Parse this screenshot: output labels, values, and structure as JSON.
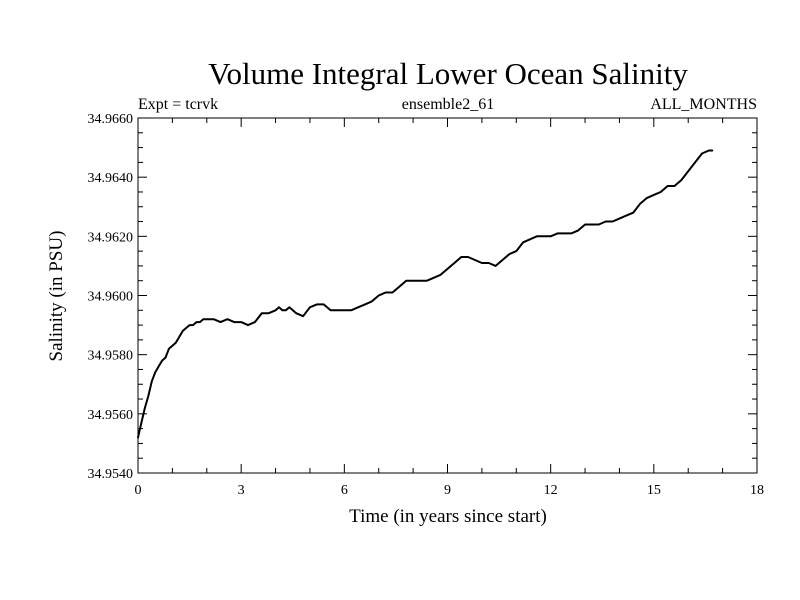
{
  "chart_data": {
    "type": "line",
    "title": "Volume Integral Lower Ocean Salinity",
    "subtitle_left": "Expt = tcrvk",
    "subtitle_center": "ensemble2_61",
    "subtitle_right": "ALL_MONTHS",
    "xlabel": "Time (in years since start)",
    "ylabel": "Salinity (in PSU)",
    "xlim": [
      0,
      18
    ],
    "ylim": [
      34.954,
      34.966
    ],
    "xticks": [
      "0",
      "3",
      "6",
      "9",
      "12",
      "15",
      "18"
    ],
    "yticks": [
      "34.9540",
      "34.9560",
      "34.9580",
      "34.9600",
      "34.9620",
      "34.9640",
      "34.9660"
    ],
    "grid": false,
    "series": [
      {
        "color": "#000000",
        "x": [
          0.0,
          0.1,
          0.2,
          0.3,
          0.4,
          0.5,
          0.6,
          0.7,
          0.8,
          0.9,
          1.0,
          1.1,
          1.2,
          1.3,
          1.4,
          1.5,
          1.6,
          1.7,
          1.8,
          1.9,
          2.0,
          2.2,
          2.4,
          2.6,
          2.8,
          3.0,
          3.2,
          3.4,
          3.6,
          3.8,
          4.0,
          4.1,
          4.2,
          4.3,
          4.4,
          4.5,
          4.6,
          4.8,
          5.0,
          5.2,
          5.4,
          5.6,
          5.8,
          6.0,
          6.2,
          6.4,
          6.6,
          6.8,
          7.0,
          7.2,
          7.4,
          7.6,
          7.8,
          8.0,
          8.2,
          8.4,
          8.6,
          8.8,
          9.0,
          9.2,
          9.4,
          9.6,
          9.8,
          10.0,
          10.2,
          10.4,
          10.6,
          10.8,
          11.0,
          11.2,
          11.4,
          11.6,
          11.8,
          12.0,
          12.2,
          12.4,
          12.6,
          12.8,
          13.0,
          13.2,
          13.4,
          13.6,
          13.8,
          14.0,
          14.2,
          14.4,
          14.6,
          14.8,
          15.0,
          15.2,
          15.4,
          15.6,
          15.8,
          16.0,
          16.2,
          16.4,
          16.6,
          16.7
        ],
        "values": [
          34.9552,
          34.9557,
          34.9562,
          34.9566,
          34.9571,
          34.9574,
          34.9576,
          34.9578,
          34.9579,
          34.9582,
          34.9583,
          34.9584,
          34.9586,
          34.9588,
          34.9589,
          34.959,
          34.959,
          34.9591,
          34.9591,
          34.9592,
          34.9592,
          34.9592,
          34.9591,
          34.9592,
          34.9591,
          34.9591,
          34.959,
          34.9591,
          34.9594,
          34.9594,
          34.9595,
          34.9596,
          34.9595,
          34.9595,
          34.9596,
          34.9595,
          34.9594,
          34.9593,
          34.9596,
          34.9597,
          34.9597,
          34.9595,
          34.9595,
          34.9595,
          34.9595,
          34.9596,
          34.9597,
          34.9598,
          34.96,
          34.9601,
          34.9601,
          34.9603,
          34.9605,
          34.9605,
          34.9605,
          34.9605,
          34.9606,
          34.9607,
          34.9609,
          34.9611,
          34.9613,
          34.9613,
          34.9612,
          34.9611,
          34.9611,
          34.961,
          34.9612,
          34.9614,
          34.9615,
          34.9618,
          34.9619,
          34.962,
          34.962,
          34.962,
          34.9621,
          34.9621,
          34.9621,
          34.9622,
          34.9624,
          34.9624,
          34.9624,
          34.9625,
          34.9625,
          34.9626,
          34.9627,
          34.9628,
          34.9631,
          34.9633,
          34.9634,
          34.9635,
          34.9637,
          34.9637,
          34.9639,
          34.9642,
          34.9645,
          34.9648,
          34.9649,
          34.9649
        ]
      }
    ]
  }
}
